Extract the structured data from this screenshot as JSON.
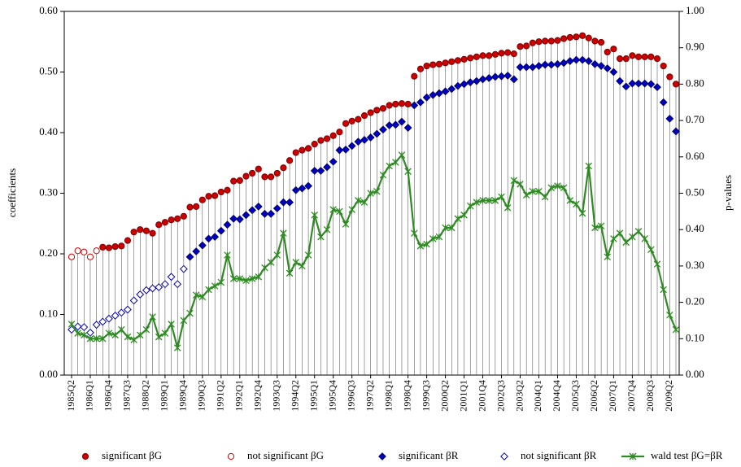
{
  "chart_data": {
    "type": "line",
    "y_label": "coefficients",
    "y2_label": "p-values",
    "categories": [
      "1985Q2",
      null,
      null,
      "1986Q1",
      null,
      null,
      "1986Q4",
      null,
      null,
      "1987Q3",
      null,
      null,
      "1988Q2",
      null,
      null,
      "1989Q1",
      null,
      null,
      "1989Q4",
      null,
      null,
      "1990Q3",
      null,
      null,
      "1991Q2",
      null,
      null,
      "1992Q1",
      null,
      null,
      "1992Q4",
      null,
      null,
      "1993Q3",
      null,
      null,
      "1994Q2",
      null,
      null,
      "1995Q1",
      null,
      null,
      "1995Q4",
      null,
      null,
      "1996Q3",
      null,
      null,
      "1997Q2",
      null,
      null,
      "1998Q1",
      null,
      null,
      "1998Q4",
      null,
      null,
      "1999Q3",
      null,
      null,
      "2000Q2",
      null,
      null,
      "2001Q1",
      null,
      null,
      "2001Q4",
      null,
      null,
      "2002Q3",
      null,
      null,
      "2003Q2",
      null,
      null,
      "2004Q1",
      null,
      null,
      "2004Q4",
      null,
      null,
      "2005Q3",
      null,
      null,
      "2006Q2",
      null,
      null,
      "2007Q1",
      null,
      null,
      "2007Q4",
      null,
      null,
      "2008Q3",
      null,
      null,
      "2009Q2",
      null
    ],
    "ylim": [
      0,
      0.6
    ],
    "yticks": [
      {
        "value": 0,
        "label": "0.00"
      },
      {
        "value": 0.1,
        "label": "0.10"
      },
      {
        "value": 0.2,
        "label": "0.20"
      },
      {
        "value": 0.3,
        "label": "0.30"
      },
      {
        "value": 0.4,
        "label": "0.40"
      },
      {
        "value": 0.5,
        "label": "0.50"
      },
      {
        "value": 0.6,
        "label": "0.60"
      }
    ],
    "y2lim": [
      0,
      1
    ],
    "y2ticks": [
      {
        "value": 0,
        "label": "0.00"
      },
      {
        "value": 0.1,
        "label": "0.10"
      },
      {
        "value": 0.2,
        "label": "0.20"
      },
      {
        "value": 0.3,
        "label": "0.30"
      },
      {
        "value": 0.4,
        "label": "0.40"
      },
      {
        "value": 0.5,
        "label": "0.50"
      },
      {
        "value": 0.6,
        "label": "0.60"
      },
      {
        "value": 0.7,
        "label": "0.70"
      },
      {
        "value": 0.8,
        "label": "0.80"
      },
      {
        "value": 0.9,
        "label": "0.90"
      },
      {
        "value": 1,
        "label": "1.00"
      }
    ],
    "drop_lines": true,
    "series": [
      {
        "name": "significant βG",
        "color": "#d00000",
        "marker": "circle",
        "filled": true,
        "values": [
          null,
          null,
          null,
          null,
          null,
          0.211,
          0.21,
          0.212,
          0.213,
          0.222,
          0.236,
          0.24,
          0.238,
          0.234,
          0.248,
          0.252,
          0.256,
          0.258,
          0.262,
          0.277,
          0.278,
          0.289,
          0.295,
          0.296,
          0.302,
          0.305,
          0.32,
          0.321,
          0.328,
          0.333,
          0.34,
          0.327,
          0.327,
          0.333,
          0.342,
          0.354,
          0.367,
          0.371,
          0.374,
          0.381,
          0.387,
          0.39,
          0.395,
          0.401,
          0.415,
          0.419,
          0.422,
          0.428,
          0.433,
          0.437,
          0.44,
          0.445,
          0.447,
          0.448,
          0.447,
          0.493,
          0.505,
          0.51,
          0.512,
          0.513,
          0.515,
          0.517,
          0.519,
          0.521,
          0.523,
          0.525,
          0.527,
          0.527,
          0.529,
          0.531,
          0.532,
          0.53,
          0.542,
          0.543,
          0.548,
          0.55,
          0.551,
          0.551,
          0.552,
          0.555,
          0.557,
          0.558,
          0.56,
          0.556,
          0.551,
          0.549,
          0.533,
          0.538,
          0.522,
          0.522,
          0.527,
          0.525,
          0.525,
          0.525,
          0.522,
          0.51,
          0.492,
          0.48
        ]
      },
      {
        "name": "not significant βG",
        "color": "#d00000",
        "marker": "circle",
        "filled": false,
        "values": [
          0.195,
          0.205,
          0.203,
          0.195,
          0.205,
          null,
          null,
          null,
          null,
          null,
          null,
          null,
          null,
          null,
          null,
          null,
          null,
          null,
          null,
          null,
          null,
          null,
          null,
          null,
          null,
          null,
          null,
          null,
          null,
          null,
          null,
          null,
          null,
          null,
          null,
          null,
          null,
          null,
          null,
          null,
          null,
          null,
          null,
          null,
          null,
          null,
          null,
          null,
          null,
          null,
          null,
          null,
          null,
          null,
          null,
          null,
          null,
          null,
          null,
          null,
          null,
          null,
          null,
          null,
          null,
          null,
          null,
          null,
          null,
          null,
          null,
          null,
          null,
          null,
          null,
          null,
          null,
          null,
          null,
          null,
          null,
          null,
          null,
          null,
          null,
          null,
          null,
          null,
          null,
          null,
          null,
          null,
          null,
          null,
          null,
          null,
          null,
          null
        ]
      },
      {
        "name": "significant βR",
        "color": "#0000c0",
        "marker": "diamond",
        "filled": true,
        "values": [
          null,
          null,
          null,
          null,
          null,
          null,
          null,
          null,
          null,
          null,
          null,
          null,
          null,
          null,
          null,
          null,
          null,
          null,
          null,
          0.195,
          0.204,
          0.214,
          0.225,
          0.228,
          0.238,
          0.248,
          0.258,
          0.257,
          0.264,
          0.272,
          0.278,
          0.266,
          0.266,
          0.275,
          0.285,
          0.285,
          0.305,
          0.308,
          0.312,
          0.337,
          0.337,
          0.343,
          0.352,
          0.371,
          0.372,
          0.378,
          0.385,
          0.388,
          0.392,
          0.398,
          0.405,
          0.412,
          0.413,
          0.418,
          0.408,
          0.445,
          0.45,
          0.458,
          0.462,
          0.465,
          0.468,
          0.472,
          0.477,
          0.48,
          0.483,
          0.485,
          0.488,
          0.49,
          0.492,
          0.493,
          0.494,
          0.488,
          0.508,
          0.508,
          0.508,
          0.51,
          0.512,
          0.512,
          0.513,
          0.515,
          0.518,
          0.52,
          0.52,
          0.518,
          0.513,
          0.51,
          0.506,
          0.5,
          0.485,
          0.476,
          0.481,
          0.481,
          0.481,
          0.48,
          0.475,
          0.45,
          0.423,
          0.402
        ]
      },
      {
        "name": "not significant βR",
        "color": "#0000c0",
        "marker": "diamond",
        "filled": false,
        "values": [
          0.075,
          0.08,
          0.079,
          0.07,
          0.083,
          0.088,
          0.093,
          0.098,
          0.103,
          0.108,
          0.123,
          0.133,
          0.14,
          0.143,
          0.145,
          0.15,
          0.162,
          0.15,
          0.175,
          null,
          null,
          null,
          null,
          null,
          null,
          null,
          null,
          null,
          null,
          null,
          null,
          null,
          null,
          null,
          null,
          null,
          null,
          null,
          null,
          null,
          null,
          null,
          null,
          null,
          null,
          null,
          null,
          null,
          null,
          null,
          null,
          null,
          null,
          null,
          null,
          null,
          null,
          null,
          null,
          null,
          null,
          null,
          null,
          null,
          null,
          null,
          null,
          null,
          null,
          null,
          null,
          null,
          null,
          null,
          null,
          null,
          null,
          null,
          null,
          null,
          null,
          null,
          null,
          null,
          null,
          null,
          null,
          null,
          null,
          null,
          null,
          null,
          null,
          null,
          null,
          null,
          null,
          null
        ]
      },
      {
        "name": "wald test βG=βR",
        "color": "#2e8b22",
        "marker": "star",
        "line": true,
        "axis": "y2",
        "values": [
          0.14,
          0.115,
          0.11,
          0.1,
          0.1,
          0.1,
          0.115,
          0.11,
          0.125,
          0.105,
          0.097,
          0.11,
          0.125,
          0.16,
          0.105,
          0.115,
          0.14,
          0.075,
          0.15,
          0.17,
          0.22,
          0.215,
          0.235,
          0.245,
          0.255,
          0.33,
          0.265,
          0.265,
          0.26,
          0.265,
          0.27,
          0.295,
          0.31,
          0.33,
          0.39,
          0.28,
          0.31,
          0.3,
          0.33,
          0.44,
          0.38,
          0.4,
          0.455,
          0.45,
          0.415,
          0.455,
          0.48,
          0.475,
          0.5,
          0.505,
          0.55,
          0.575,
          0.585,
          0.605,
          0.56,
          0.39,
          0.355,
          0.36,
          0.375,
          0.38,
          0.405,
          0.405,
          0.43,
          0.44,
          0.465,
          0.475,
          0.48,
          0.48,
          0.48,
          0.49,
          0.46,
          0.535,
          0.525,
          0.495,
          0.505,
          0.505,
          0.49,
          0.515,
          0.52,
          0.515,
          0.48,
          0.47,
          0.445,
          0.575,
          0.405,
          0.41,
          0.325,
          0.375,
          0.39,
          0.365,
          0.38,
          0.395,
          0.375,
          0.345,
          0.305,
          0.235,
          0.165,
          0.125
        ]
      }
    ]
  }
}
